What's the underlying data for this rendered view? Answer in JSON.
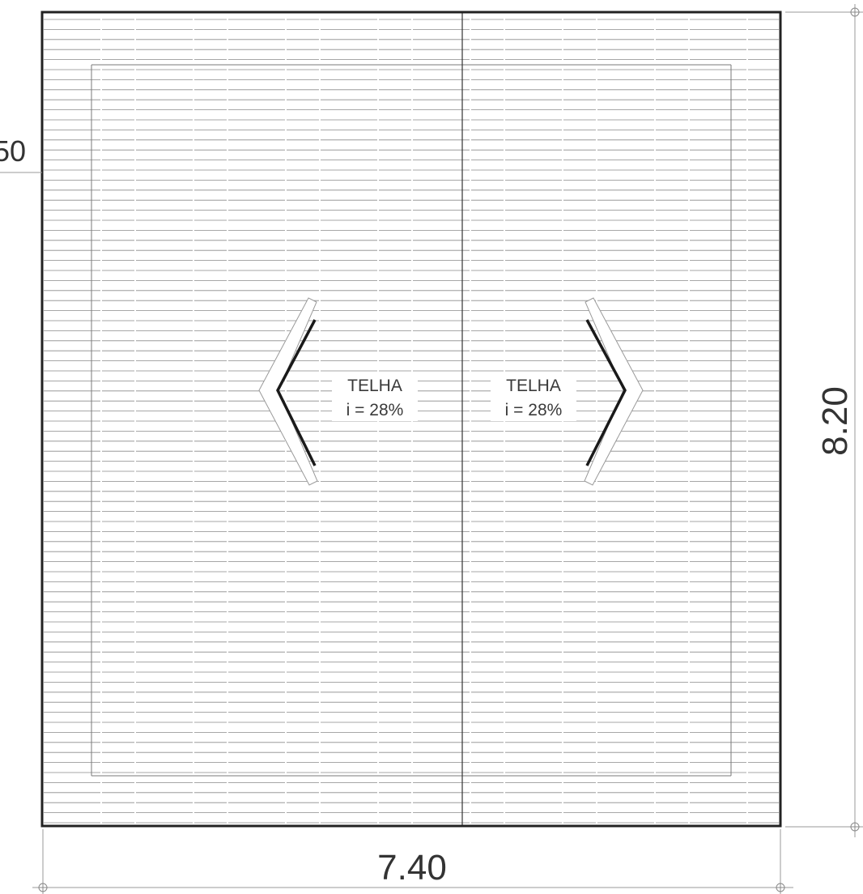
{
  "drawing": {
    "roof_label_left": {
      "material": "TELHA",
      "slope": "i = 28%"
    },
    "roof_label_right": {
      "material": "TELHA",
      "slope": "i = 28%"
    },
    "dimension_width": "7.40",
    "dimension_height": "8.20",
    "dimension_partial_left": "50"
  },
  "colors": {
    "outline": "#222222",
    "tile_lines": "#8a8a8a",
    "dim_lines": "#9a9a9a",
    "text": "#3a3a3a"
  }
}
